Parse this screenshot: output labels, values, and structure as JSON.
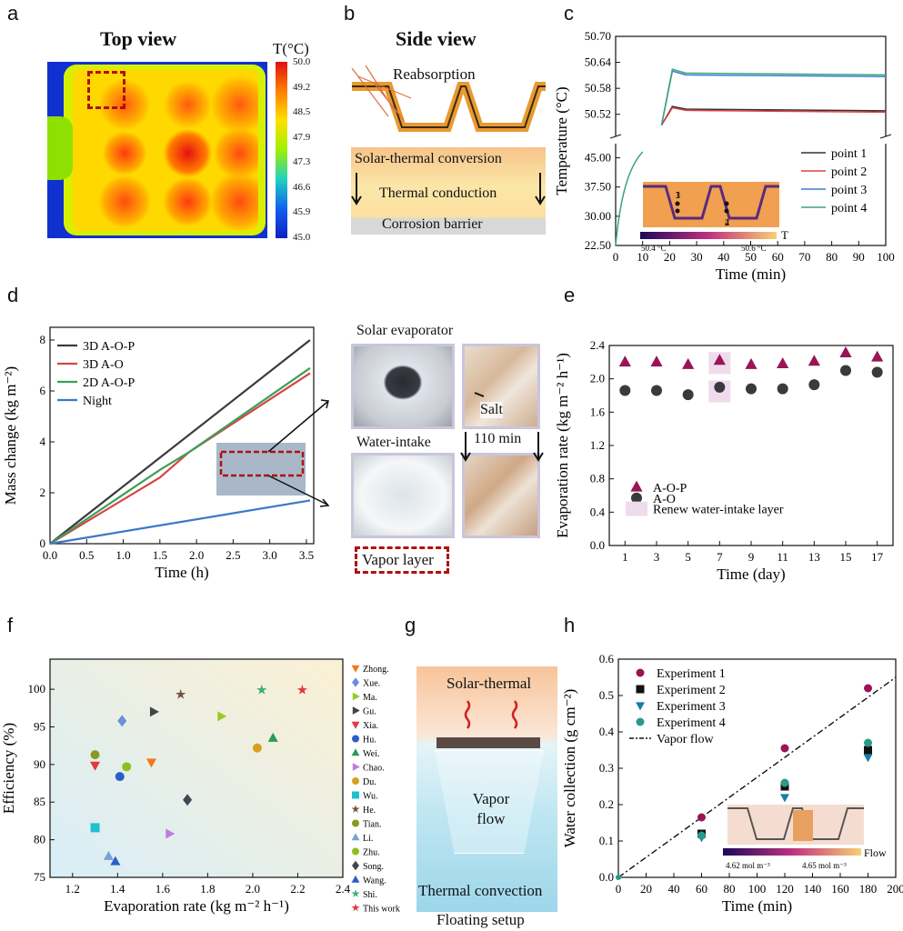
{
  "panel_labels": [
    "a",
    "b",
    "c",
    "d",
    "e",
    "f",
    "g",
    "h"
  ],
  "panel_a": {
    "title": "Top view",
    "colorbar_title": "T(°C)",
    "colorbar_ticks": [
      "50.0",
      "49.2",
      "48.5",
      "47.9",
      "47.3",
      "46.6",
      "45.9",
      "45.0"
    ]
  },
  "panel_b": {
    "title": "Side view",
    "reabsorption": "Reabsorption",
    "layers": [
      "Solar-thermal conversion",
      "Thermal conduction",
      "Corrosion barrier"
    ]
  },
  "panel_d_photos": {
    "solar_evaporator": "Solar evaporator",
    "water_intake": "Water-intake",
    "salt": "Salt",
    "duration": "110 min",
    "vapor_layer": "Vapor layer"
  },
  "panel_g": {
    "top": "Solar-thermal",
    "middle": "Vapor flow",
    "bottom": "Thermal convection",
    "caption": "Floating setup"
  },
  "chart_data": [
    {
      "id": "c",
      "type": "line",
      "ylabel": "Temperature (°C)",
      "xlabel": "Time (min)",
      "xlim": [
        0,
        100
      ],
      "xticks": [
        0,
        10,
        20,
        30,
        40,
        50,
        60,
        70,
        80,
        90,
        100
      ],
      "yticks_upper": [
        "50.70",
        "50.64",
        "50.58",
        "50.52"
      ],
      "yticks_lower": [
        "45.00",
        "37.50",
        "30.00",
        "22.50"
      ],
      "series": [
        {
          "name": "point 1",
          "color": "#333333",
          "plateau": 50.528
        },
        {
          "name": "point 2",
          "color": "#e04040",
          "plateau": 50.525
        },
        {
          "name": "point 3",
          "color": "#3a7fd0",
          "plateau": 50.607
        },
        {
          "name": "point 4",
          "color": "#3aa57a",
          "plateau": 50.611
        }
      ],
      "inset": {
        "colorbar_title": "T",
        "min_label": "50.4 °C",
        "max_label": "50.6 °C",
        "points": [
          "1",
          "2",
          "3",
          "4"
        ]
      }
    },
    {
      "id": "d",
      "type": "line",
      "ylabel": "Mass change (kg m⁻²)",
      "xlabel": "Time (h)",
      "xlim": [
        0,
        3.6
      ],
      "ylim": [
        0,
        8.5
      ],
      "xticks": [
        "0.0",
        "0.5",
        "1.0",
        "1.5",
        "2.0",
        "2.5",
        "3.0",
        "3.5"
      ],
      "yticks": [
        "0",
        "2",
        "4",
        "6",
        "8"
      ],
      "series": [
        {
          "name": "3D A-O-P",
          "color": "#3b3b3b",
          "x": [
            0,
            3.55
          ],
          "y": [
            0,
            8.0
          ]
        },
        {
          "name": "3D A-O",
          "color": "#d84545",
          "x": [
            0,
            1.5,
            1.9,
            3.55
          ],
          "y": [
            0,
            2.6,
            3.6,
            6.7
          ]
        },
        {
          "name": "2D A-O-P",
          "color": "#3aa05a",
          "x": [
            0,
            1.5,
            1.9,
            3.55
          ],
          "y": [
            0,
            2.9,
            3.6,
            6.9
          ]
        },
        {
          "name": "Night",
          "color": "#3a78c8",
          "x": [
            0,
            3.55
          ],
          "y": [
            0,
            1.7
          ]
        }
      ]
    },
    {
      "id": "e",
      "type": "scatter",
      "ylabel": "Evaporation rate (kg m⁻² h⁻¹)",
      "xlabel": "Time (day)",
      "xlim": [
        0,
        18
      ],
      "ylim": [
        0,
        2.4
      ],
      "xticks": [
        "1",
        "3",
        "5",
        "7",
        "9",
        "11",
        "13",
        "15",
        "17"
      ],
      "yticks": [
        "0.0",
        "0.4",
        "0.8",
        "1.2",
        "1.6",
        "2.0",
        "2.4"
      ],
      "x": [
        1,
        3,
        5,
        7,
        9,
        11,
        13,
        15,
        17
      ],
      "series": [
        {
          "name": "A-O-P",
          "color": "#9a1456",
          "marker": "triangle",
          "values": [
            2.2,
            2.2,
            2.17,
            2.22,
            2.17,
            2.18,
            2.21,
            2.31,
            2.26
          ]
        },
        {
          "name": "A-O",
          "color": "#3a3a3a",
          "marker": "circle",
          "values": [
            1.86,
            1.86,
            1.81,
            1.9,
            1.88,
            1.88,
            1.93,
            2.1,
            2.08
          ]
        }
      ],
      "renew_days": [
        7
      ],
      "renew_label": "Renew water-intake layer"
    },
    {
      "id": "f",
      "type": "scatter",
      "ylabel": "Efficiency (%)",
      "xlabel": "Evaporation rate (kg m⁻² h⁻¹)",
      "xlim": [
        1.1,
        2.4
      ],
      "ylim": [
        75,
        104
      ],
      "xticks": [
        "1.2",
        "1.4",
        "1.6",
        "1.8",
        "2.0",
        "2.2",
        "2.4"
      ],
      "yticks": [
        "75",
        "80",
        "85",
        "90",
        "95",
        "100"
      ],
      "points": [
        {
          "name": "Zhong.",
          "x": 1.55,
          "y": 90.3,
          "color": "#f07a1a",
          "marker": "tri-down"
        },
        {
          "name": "Xue.",
          "x": 1.42,
          "y": 95.8,
          "color": "#6b8fd8",
          "marker": "diamond"
        },
        {
          "name": "Ma.",
          "x": 1.86,
          "y": 96.4,
          "color": "#9ac82a",
          "marker": "tri-right"
        },
        {
          "name": "Gu.",
          "x": 1.56,
          "y": 97.0,
          "color": "#444444",
          "marker": "tri-right"
        },
        {
          "name": "Xia.",
          "x": 1.3,
          "y": 89.9,
          "color": "#e03a3a",
          "marker": "tri-down"
        },
        {
          "name": "Hu.",
          "x": 1.41,
          "y": 88.4,
          "color": "#2a5fc8",
          "marker": "hexagon"
        },
        {
          "name": "Wei.",
          "x": 2.09,
          "y": 93.5,
          "color": "#2a9a5a",
          "marker": "triangle"
        },
        {
          "name": "Chao.",
          "x": 1.63,
          "y": 80.8,
          "color": "#c07ae0",
          "marker": "tri-right"
        },
        {
          "name": "Du.",
          "x": 2.02,
          "y": 92.2,
          "color": "#d8a020",
          "marker": "circle"
        },
        {
          "name": "Wu.",
          "x": 1.3,
          "y": 81.6,
          "color": "#20c0d0",
          "marker": "square"
        },
        {
          "name": "He.",
          "x": 1.68,
          "y": 99.3,
          "color": "#7a5040",
          "marker": "star"
        },
        {
          "name": "Tian.",
          "x": 1.3,
          "y": 91.3,
          "color": "#8a9a20",
          "marker": "circle"
        },
        {
          "name": "Li.",
          "x": 1.36,
          "y": 77.8,
          "color": "#7aa0d8",
          "marker": "triangle"
        },
        {
          "name": "Zhu.",
          "x": 1.44,
          "y": 89.7,
          "color": "#8ac020",
          "marker": "pentagon"
        },
        {
          "name": "Song.",
          "x": 1.71,
          "y": 85.3,
          "color": "#444455",
          "marker": "diamond"
        },
        {
          "name": "Wang.",
          "x": 1.39,
          "y": 77.1,
          "color": "#2a5fc8",
          "marker": "triangle"
        },
        {
          "name": "Shi.",
          "x": 2.04,
          "y": 99.9,
          "color": "#3ab07a",
          "marker": "star"
        },
        {
          "name": "This work",
          "x": 2.22,
          "y": 99.9,
          "color": "#e03a3a",
          "marker": "star"
        }
      ]
    },
    {
      "id": "h",
      "type": "scatter",
      "ylabel": "Water collection (g cm⁻²)",
      "xlabel": "Time (min)",
      "xlim": [
        0,
        200
      ],
      "ylim": [
        0,
        0.6
      ],
      "xticks": [
        "0",
        "20",
        "40",
        "60",
        "80",
        "100",
        "120",
        "140",
        "160",
        "180",
        "200"
      ],
      "yticks": [
        "0.0",
        "0.1",
        "0.2",
        "0.3",
        "0.4",
        "0.5",
        "0.6"
      ],
      "x": [
        60,
        120,
        180
      ],
      "series": [
        {
          "name": "Experiment 1",
          "color": "#9a1456",
          "marker": "circle",
          "values": [
            0.165,
            0.355,
            0.52
          ]
        },
        {
          "name": "Experiment 2",
          "color": "#111111",
          "marker": "square",
          "values": [
            0.12,
            0.25,
            0.35
          ]
        },
        {
          "name": "Experiment 3",
          "color": "#1a7aa8",
          "marker": "tri-down",
          "values": [
            0.11,
            0.22,
            0.33
          ]
        },
        {
          "name": "Experiment 4",
          "color": "#2a9a8a",
          "marker": "circle",
          "values": [
            0.115,
            0.26,
            0.37
          ]
        }
      ],
      "line": {
        "name": "Vapor flow",
        "slope": 0.00275
      },
      "inset": {
        "colorbar_title": "Flow",
        "min_label": "4.62 mol m⁻³",
        "max_label": "4.65 mol m⁻³"
      }
    }
  ]
}
